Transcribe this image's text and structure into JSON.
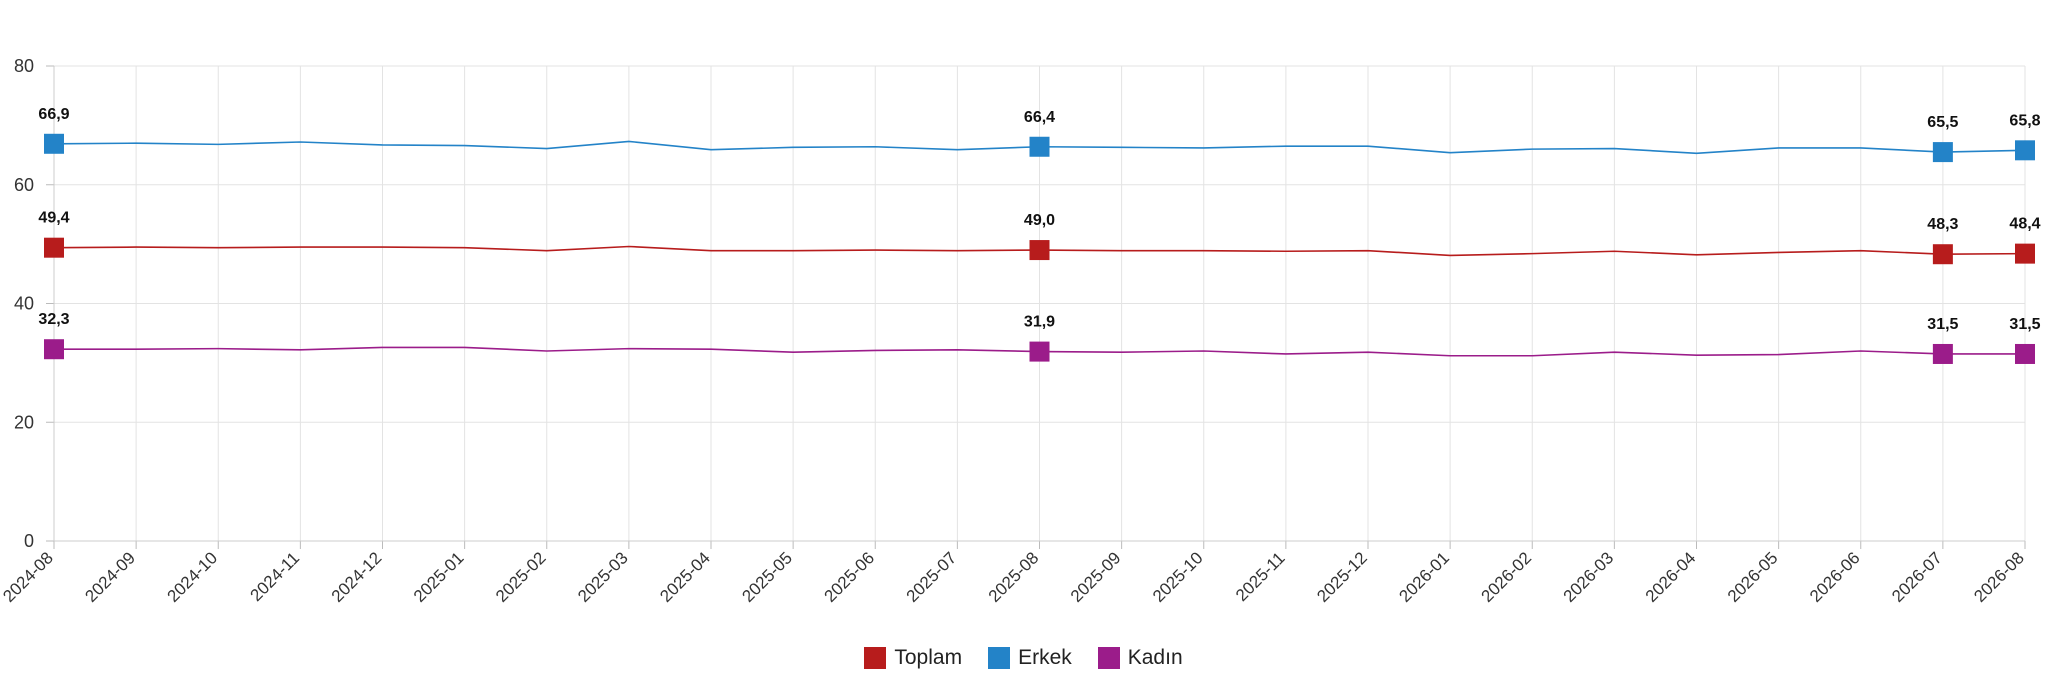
{
  "chart_data": {
    "type": "line",
    "title": "",
    "xlabel": "",
    "ylabel": "",
    "ylim": [
      0,
      80
    ],
    "yticks": [
      "0",
      "20",
      "40",
      "60",
      "80"
    ],
    "grid": true,
    "legend_position": "bottom-center",
    "categories": [
      "2024-08",
      "2024-09",
      "2024-10",
      "2024-11",
      "2024-12",
      "2025-01",
      "2025-02",
      "2025-03",
      "2025-04",
      "2025-05",
      "2025-06",
      "2025-07",
      "2025-08",
      "2025-09",
      "2025-10",
      "2025-11",
      "2025-12",
      "2026-01",
      "2026-02",
      "2026-03",
      "2026-04",
      "2026-05",
      "2026-06",
      "2026-07",
      "2026-08"
    ],
    "series": [
      {
        "name": "Toplam",
        "color": "#B71C1C",
        "values": [
          49.4,
          49.5,
          49.4,
          49.5,
          49.5,
          49.4,
          48.9,
          49.6,
          48.9,
          48.9,
          49.0,
          48.9,
          49.0,
          48.9,
          48.9,
          48.8,
          48.9,
          48.1,
          48.4,
          48.8,
          48.2,
          48.6,
          48.9,
          48.3,
          48.4
        ],
        "labels": {
          "0": "49,4",
          "12": "49,0",
          "23": "48,3",
          "24": "48,4"
        }
      },
      {
        "name": "Erkek",
        "color": "#2383C8",
        "values": [
          66.9,
          67.0,
          66.8,
          67.2,
          66.7,
          66.6,
          66.1,
          67.3,
          65.9,
          66.3,
          66.4,
          65.9,
          66.4,
          66.3,
          66.2,
          66.5,
          66.5,
          65.4,
          66.0,
          66.1,
          65.3,
          66.2,
          66.2,
          65.5,
          65.8
        ],
        "labels": {
          "0": "66,9",
          "12": "66,4",
          "23": "65,5",
          "24": "65,8"
        }
      },
      {
        "name": "Kadın",
        "color": "#9B1C8A",
        "values": [
          32.3,
          32.3,
          32.4,
          32.2,
          32.6,
          32.6,
          32.0,
          32.4,
          32.3,
          31.8,
          32.1,
          32.2,
          31.9,
          31.8,
          32.0,
          31.5,
          31.8,
          31.2,
          31.2,
          31.8,
          31.3,
          31.4,
          32.0,
          31.5,
          31.5
        ],
        "labels": {
          "0": "32,3",
          "12": "31,9",
          "23": "31,5",
          "24": "31,5"
        }
      }
    ]
  }
}
